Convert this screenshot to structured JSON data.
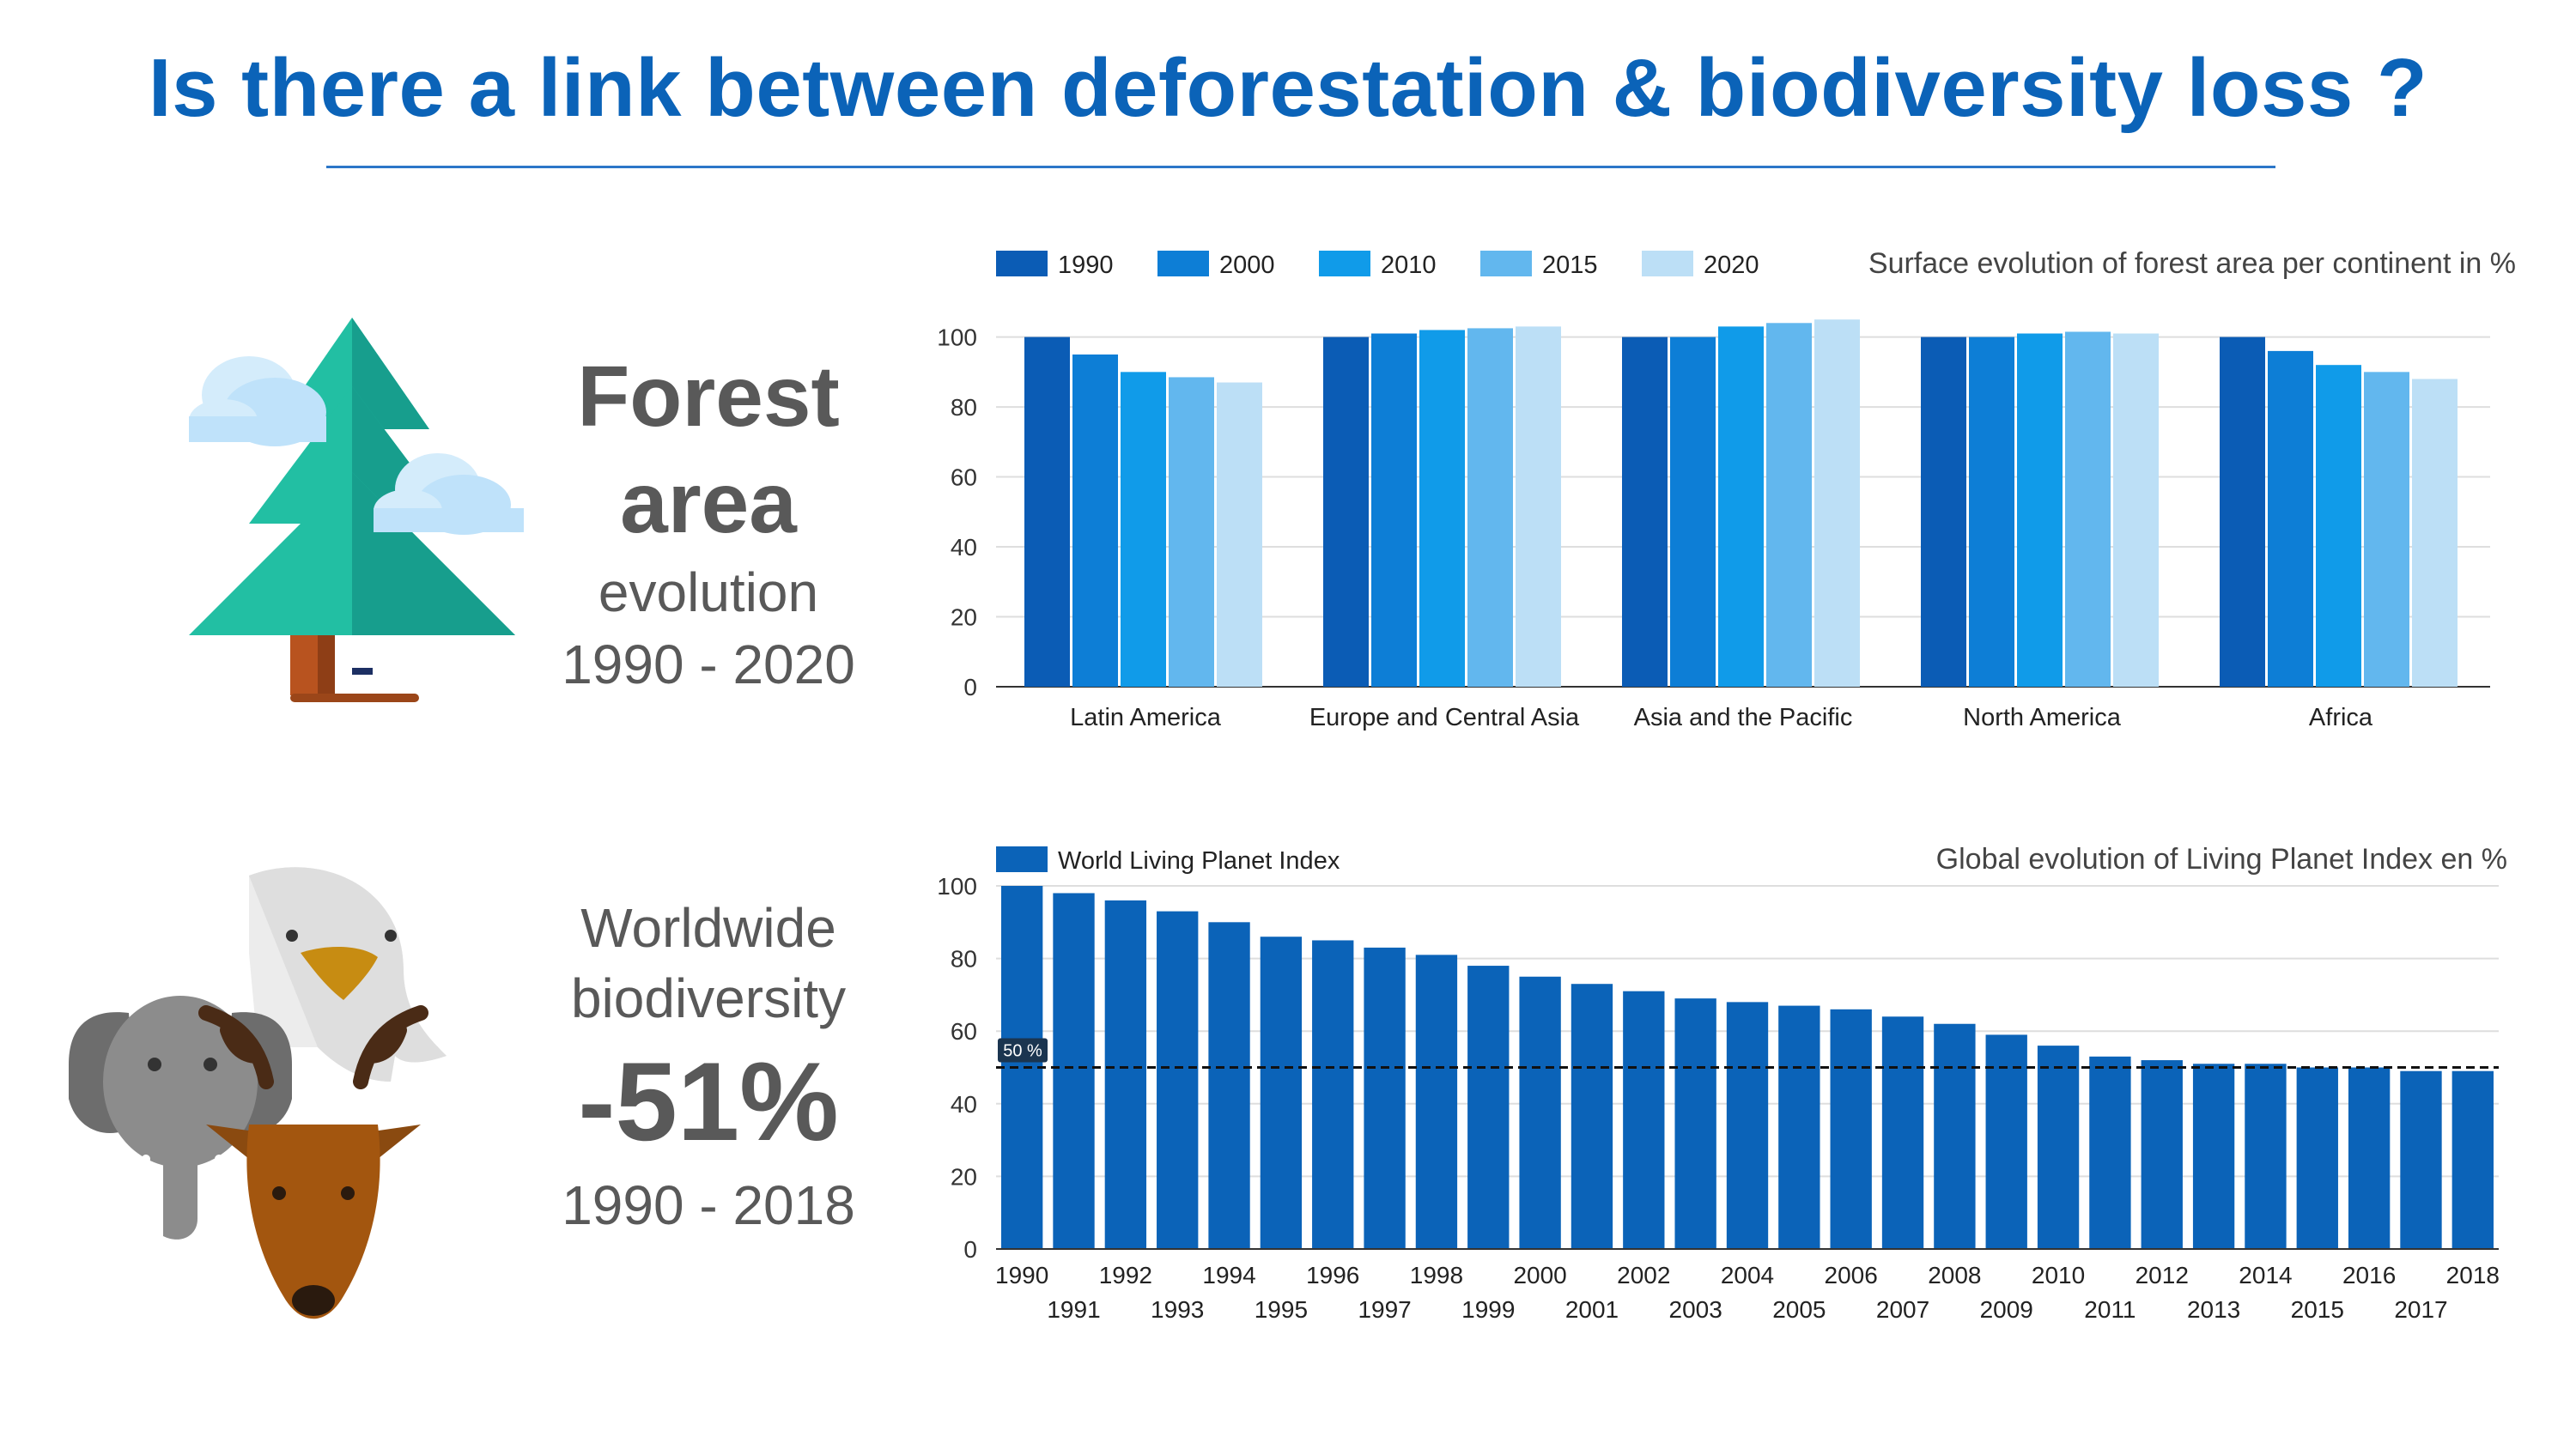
{
  "title": "Is there a link between deforestation & biodiversity loss ?",
  "forest_panel": {
    "line1": "Forest",
    "line2": "area",
    "line3": "evolution",
    "line4": "1990 - 2020"
  },
  "biodiversity_panel": {
    "line1": "Worldwide",
    "line2": "biodiversity",
    "line3": "-51%",
    "line4": "1990 - 2018"
  },
  "icons": {
    "forest": "pine-tree-with-clouds-icon",
    "biodiversity": "eagle-elephant-deer-icon"
  },
  "chart_data": [
    {
      "type": "bar",
      "title": "Surface evolution of forest area per continent in %",
      "categories": [
        "Latin America",
        "Europe and Central Asia",
        "Asia and the Pacific",
        "North America",
        "Africa"
      ],
      "series": [
        {
          "name": "1990",
          "color": "#0b5cb5",
          "values": [
            100,
            100,
            100,
            100,
            100
          ]
        },
        {
          "name": "2000",
          "color": "#0d7ed6",
          "values": [
            95,
            101,
            100,
            100,
            96
          ]
        },
        {
          "name": "2010",
          "color": "#109be9",
          "values": [
            90,
            102,
            103,
            101,
            92
          ]
        },
        {
          "name": "2015",
          "color": "#62b7ee",
          "values": [
            88.5,
            102.5,
            104,
            101.5,
            90
          ]
        },
        {
          "name": "2020",
          "color": "#bcdff6",
          "values": [
            87,
            103,
            105,
            101,
            88
          ]
        }
      ],
      "yticks": [
        0,
        20,
        40,
        60,
        80,
        100
      ],
      "ylim": [
        0,
        108
      ],
      "grid": true,
      "legend_position": "top-left"
    },
    {
      "type": "bar",
      "title": "Global evolution of Living Planet Index en %",
      "x": [
        1990,
        1991,
        1992,
        1993,
        1994,
        1995,
        1996,
        1997,
        1998,
        1999,
        2000,
        2001,
        2002,
        2003,
        2004,
        2005,
        2006,
        2007,
        2008,
        2009,
        2010,
        2011,
        2012,
        2013,
        2014,
        2015,
        2016,
        2017,
        2018
      ],
      "series": [
        {
          "name": "World Living Planet Index",
          "color": "#0b63b8",
          "values": [
            100,
            98,
            96,
            93,
            90,
            86,
            85,
            83,
            81,
            78,
            75,
            73,
            71,
            69,
            68,
            67,
            66,
            64,
            62,
            59,
            56,
            53,
            52,
            51,
            51,
            50,
            50,
            49,
            49
          ]
        }
      ],
      "reference_line": {
        "value": 50,
        "label": "50 %"
      },
      "yticks": [
        0,
        20,
        40,
        60,
        80,
        100
      ],
      "ylim": [
        0,
        100
      ],
      "grid": true,
      "legend_position": "top-left"
    }
  ]
}
